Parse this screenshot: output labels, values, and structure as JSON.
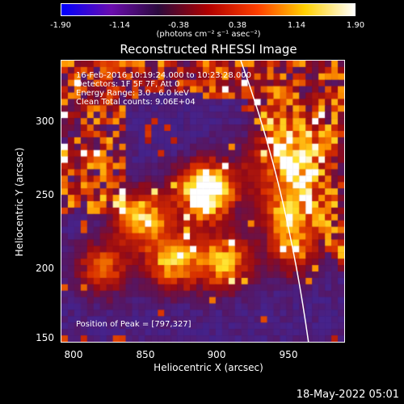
{
  "colorbar": {
    "ticks": [
      "-1.90",
      "-1.14",
      "-0.38",
      "0.38",
      "1.14",
      "1.90"
    ],
    "units": "(photons cm⁻² s⁻¹ asec⁻²)",
    "colors": [
      "#0000ff",
      "#6a0dad",
      "#2b0a3d",
      "#b00000",
      "#ff4000",
      "#ffd000",
      "#ffffff"
    ]
  },
  "title": "Reconstructed RHESSI Image",
  "info": {
    "line1": "16-Feb-2016 10:19:24.000 to 10:23:28.000",
    "line2": "Detectors: 1F 5F 7F, Att 0",
    "line3": "Energy Range: 3.0 - 6.0 keV",
    "line4": "Clean     Total counts: 9.06E+04"
  },
  "peak": "Position of Peak = [797,327]",
  "axes": {
    "xlabel": "Heliocentric X (arcsec)",
    "ylabel": "Heliocentric Y (arcsec)",
    "xticks": [
      "800",
      "850",
      "900",
      "950"
    ],
    "yticks": [
      "300",
      "250",
      "200",
      "150"
    ]
  },
  "date": "18-May-2022 05:01"
}
